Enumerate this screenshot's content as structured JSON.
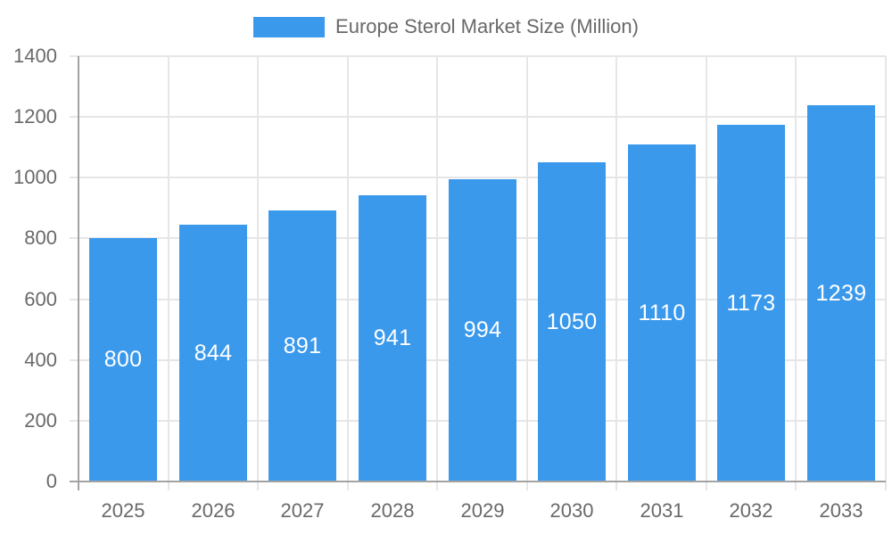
{
  "chart_data": {
    "type": "bar",
    "title": "Europe Sterol Market Size (Million)",
    "legend": {
      "position": "top",
      "label": "Europe Sterol Market Size (Million)"
    },
    "categories": [
      "2025",
      "2026",
      "2027",
      "2028",
      "2029",
      "2030",
      "2031",
      "2032",
      "2033"
    ],
    "series": [
      {
        "name": "Europe Sterol Market Size (Million)",
        "values": [
          800,
          844,
          891,
          941,
          994,
          1050,
          1110,
          1173,
          1239
        ]
      }
    ],
    "xlabel": "",
    "ylabel": "",
    "ylim": [
      0,
      1400
    ],
    "yticks": [
      0,
      200,
      400,
      600,
      800,
      1000,
      1200,
      1400
    ],
    "grid": true,
    "value_labels_inside_bars": true,
    "colors": {
      "bar": "#3B99EC",
      "grid": "#E6E6E6",
      "axis": "#A3A3A3",
      "tick_label": "#696969",
      "legend_text": "#696969",
      "value_label": "#FFFFFF",
      "background": "#FFFFFF"
    }
  }
}
